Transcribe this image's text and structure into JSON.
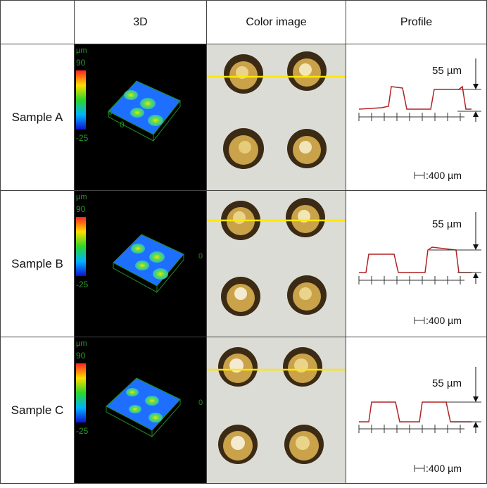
{
  "headers": [
    "",
    "3D",
    "Color image",
    "Profile"
  ],
  "samples": [
    {
      "label": "Sample A"
    },
    {
      "label": "Sample B"
    },
    {
      "label": "Sample C"
    }
  ],
  "scale_bar": {
    "unit": "µm",
    "max": "90",
    "min": "-25",
    "axis_zero": "0",
    "tick": "0"
  },
  "profile": {
    "height_label": "55 µm",
    "scale_label": ":400 µm"
  },
  "colors": {
    "profile_line": "#b22222",
    "cut_line": "#ffe600",
    "surface": "#1e6fff"
  }
}
